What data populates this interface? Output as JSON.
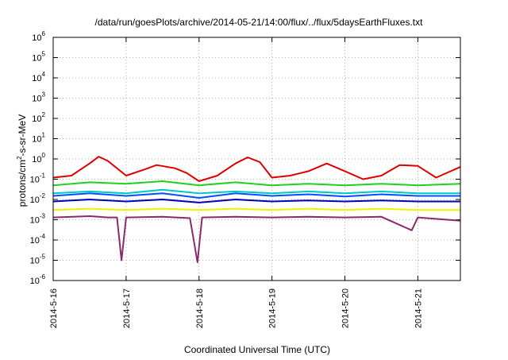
{
  "chart_data": {
    "type": "line",
    "title": "/data/run/goesPlots/archive/2014-05-21/14:00/flux/../flux/5daysEarthFluxes.txt",
    "xlabel": "Coordinated Universal Time (UTC)",
    "ylabel": "protons/cm²-s-sr-MeV",
    "ylabel_parts": {
      "pre": "protons/cm",
      "sup": "2",
      "post": "-s-sr-MeV"
    },
    "xlim": [
      "2014-05-16",
      "2014-05-21T14:00"
    ],
    "xticks": [
      "2014-5-16",
      "2014-5-17",
      "2014-5-18",
      "2014-5-19",
      "2014-5-20",
      "2014-5-21"
    ],
    "yscale": "log",
    "ylim": [
      1e-06,
      1000000.0
    ],
    "yticks": [
      {
        "base": "10",
        "exp": "-6"
      },
      {
        "base": "10",
        "exp": "-5"
      },
      {
        "base": "10",
        "exp": "-4"
      },
      {
        "base": "10",
        "exp": "-3"
      },
      {
        "base": "10",
        "exp": "-2"
      },
      {
        "base": "10",
        "exp": "-1"
      },
      {
        "base": "10",
        "exp": "0"
      },
      {
        "base": "10",
        "exp": "1"
      },
      {
        "base": "10",
        "exp": "2"
      },
      {
        "base": "10",
        "exp": "3"
      },
      {
        "base": "10",
        "exp": "4"
      },
      {
        "base": "10",
        "exp": "5"
      },
      {
        "base": "10",
        "exp": "6"
      }
    ],
    "grid": true,
    "series": [
      {
        "color": "#e00000",
        "x": [
          "2014-05-16T00:00",
          "2014-05-16T06:00",
          "2014-05-16T12:00",
          "2014-05-16T15:00",
          "2014-05-16T18:00",
          "2014-05-17T00:00",
          "2014-05-17T06:00",
          "2014-05-17T10:00",
          "2014-05-17T16:00",
          "2014-05-17T20:00",
          "2014-05-18T00:00",
          "2014-05-18T06:00",
          "2014-05-18T12:00",
          "2014-05-18T16:00",
          "2014-05-18T20:00",
          "2014-05-19T00:00",
          "2014-05-19T06:00",
          "2014-05-19T12:00",
          "2014-05-19T18:00",
          "2014-05-20T00:00",
          "2014-05-20T06:00",
          "2014-05-20T12:00",
          "2014-05-20T18:00",
          "2014-05-21T00:00",
          "2014-05-21T06:00",
          "2014-05-21T14:00"
        ],
        "y": [
          0.12,
          0.15,
          0.6,
          1.3,
          0.8,
          0.15,
          0.3,
          0.5,
          0.35,
          0.2,
          0.08,
          0.15,
          0.6,
          1.2,
          0.7,
          0.12,
          0.15,
          0.25,
          0.6,
          0.25,
          0.1,
          0.15,
          0.5,
          0.45,
          0.12,
          0.4
        ]
      },
      {
        "color": "#20d020",
        "x": [
          "2014-05-16T00:00",
          "2014-05-16T12:00",
          "2014-05-17T00:00",
          "2014-05-17T12:00",
          "2014-05-18T00:00",
          "2014-05-18T12:00",
          "2014-05-19T00:00",
          "2014-05-19T12:00",
          "2014-05-20T00:00",
          "2014-05-20T12:00",
          "2014-05-21T00:00",
          "2014-05-21T14:00"
        ],
        "y": [
          0.05,
          0.07,
          0.06,
          0.08,
          0.05,
          0.07,
          0.05,
          0.06,
          0.05,
          0.06,
          0.05,
          0.06
        ]
      },
      {
        "color": "#00c8c8",
        "x": [
          "2014-05-16T00:00",
          "2014-05-16T12:00",
          "2014-05-17T00:00",
          "2014-05-17T12:00",
          "2014-05-18T00:00",
          "2014-05-18T12:00",
          "2014-05-19T00:00",
          "2014-05-19T12:00",
          "2014-05-20T00:00",
          "2014-05-20T12:00",
          "2014-05-21T00:00",
          "2014-05-21T14:00"
        ],
        "y": [
          0.02,
          0.025,
          0.02,
          0.03,
          0.02,
          0.025,
          0.02,
          0.025,
          0.02,
          0.025,
          0.02,
          0.02
        ]
      },
      {
        "color": "#0050ff",
        "x": [
          "2014-05-16T00:00",
          "2014-05-16T12:00",
          "2014-05-17T00:00",
          "2014-05-17T12:00",
          "2014-05-18T00:00",
          "2014-05-18T12:00",
          "2014-05-19T00:00",
          "2014-05-19T12:00",
          "2014-05-20T00:00",
          "2014-05-20T12:00",
          "2014-05-21T00:00",
          "2014-05-21T14:00"
        ],
        "y": [
          0.015,
          0.02,
          0.015,
          0.02,
          0.012,
          0.02,
          0.015,
          0.018,
          0.014,
          0.018,
          0.015,
          0.015
        ]
      },
      {
        "color": "#0000b0",
        "x": [
          "2014-05-16T00:00",
          "2014-05-16T12:00",
          "2014-05-17T00:00",
          "2014-05-17T12:00",
          "2014-05-18T00:00",
          "2014-05-18T12:00",
          "2014-05-19T00:00",
          "2014-05-19T12:00",
          "2014-05-20T00:00",
          "2014-05-20T12:00",
          "2014-05-21T00:00",
          "2014-05-21T14:00"
        ],
        "y": [
          0.008,
          0.01,
          0.008,
          0.01,
          0.007,
          0.01,
          0.008,
          0.009,
          0.008,
          0.009,
          0.008,
          0.008
        ]
      },
      {
        "color": "#f0f000",
        "x": [
          "2014-05-16T00:00",
          "2014-05-16T12:00",
          "2014-05-17T00:00",
          "2014-05-17T12:00",
          "2014-05-18T00:00",
          "2014-05-18T12:00",
          "2014-05-19T00:00",
          "2014-05-19T12:00",
          "2014-05-20T00:00",
          "2014-05-20T12:00",
          "2014-05-21T00:00",
          "2014-05-21T14:00"
        ],
        "y": [
          0.003,
          0.0035,
          0.003,
          0.0035,
          0.003,
          0.0035,
          0.003,
          0.0035,
          0.003,
          0.0035,
          0.003,
          0.003
        ]
      },
      {
        "color": "#8b2a6b",
        "x": [
          "2014-05-16T00:00",
          "2014-05-16T12:00",
          "2014-05-16T18:00",
          "2014-05-16T21:00",
          "2014-05-16T22:30",
          "2014-05-17T00:00",
          "2014-05-17T12:00",
          "2014-05-17T21:00",
          "2014-05-17T23:30",
          "2014-05-18T01:00",
          "2014-05-18T12:00",
          "2014-05-19T00:00",
          "2014-05-19T12:00",
          "2014-05-20T00:00",
          "2014-05-20T12:00",
          "2014-05-20T22:00",
          "2014-05-21T00:00",
          "2014-05-21T14:00"
        ],
        "y": [
          0.0013,
          0.0015,
          0.0013,
          0.0013,
          1e-05,
          0.0013,
          0.0014,
          0.0012,
          8e-06,
          0.0013,
          0.0014,
          0.0013,
          0.0014,
          0.0013,
          0.0014,
          0.0003,
          0.0013,
          0.0009
        ]
      }
    ]
  }
}
